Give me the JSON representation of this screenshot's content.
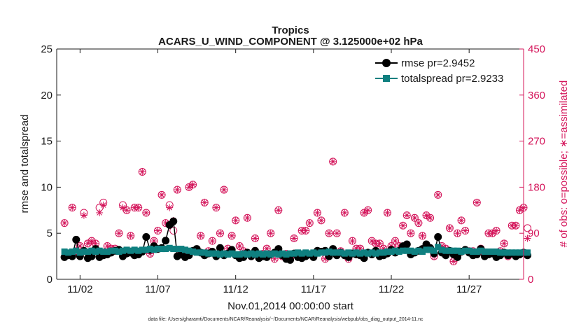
{
  "chart_data": {
    "type": "line",
    "title": "Tropics",
    "subtitle": "ACARS_U_WIND_COMPONENT @ 3.125000e+02 hPa",
    "xlabel": "Nov.01,2014 00:00:00 start",
    "ylabel": "rmse and totalspread",
    "y2label": "# of obs: o=possible; ∗=assimilated",
    "footnote": "data file: /Users/gharamti/Documents/NCAR/Reanalysis/~/Documents/NCAR/Reanalysis/webpub/obs_diag_output_2014-11.nc",
    "xlim": [
      0.5,
      30.5
    ],
    "ylim": [
      0,
      25
    ],
    "y2lim": [
      0,
      450
    ],
    "x_ticks": [
      {
        "value": 2,
        "label": "11/02"
      },
      {
        "value": 7,
        "label": "11/07"
      },
      {
        "value": 12,
        "label": "11/12"
      },
      {
        "value": 17,
        "label": "11/17"
      },
      {
        "value": 22,
        "label": "11/22"
      },
      {
        "value": 27,
        "label": "11/27"
      }
    ],
    "y_ticks": [
      0,
      5,
      10,
      15,
      20,
      25
    ],
    "y2_ticks": [
      0,
      90,
      180,
      270,
      360,
      450
    ],
    "legend": [
      "rmse pr=2.9452",
      "totalspread pr=2.9233"
    ],
    "colors": {
      "rmse": "#000000",
      "totalspread": "#0f8080",
      "obs": "#d4145a",
      "axis": "#1a1a1a"
    },
    "series": [
      {
        "name": "rmse",
        "values": [
          2.4,
          2.6,
          2.5,
          4.3,
          2.5,
          3.1,
          2.3,
          2.5,
          3.3,
          2.4,
          2.6,
          2.7,
          2.9,
          3.1,
          3.2,
          2.5,
          2.8,
          2.9,
          2.6,
          2.7,
          3.0,
          4.6,
          3.2,
          3.6,
          3.3,
          3.4,
          4.2,
          5.9,
          6.3,
          2.5,
          2.7,
          2.4,
          2.6,
          3.1,
          3.3,
          2.9,
          2.6,
          2.8,
          3.0,
          2.5,
          3.4,
          2.6,
          2.8,
          3.2,
          2.6,
          2.3,
          2.4,
          2.9,
          2.5,
          3.1,
          2.3,
          2.5,
          2.4,
          2.7,
          2.9,
          3.3,
          2.6,
          2.2,
          2.1,
          2.8,
          2.4,
          2.3,
          2.5,
          2.7,
          2.4,
          3.1,
          3.0,
          3.1,
          2.5,
          3.3,
          2.6,
          2.9,
          2.6,
          2.4,
          2.8,
          2.7,
          2.6,
          2.3,
          2.9,
          2.7,
          3.1,
          2.5,
          2.6,
          2.8,
          3.2,
          2.9,
          3.1,
          3.6,
          3.8,
          2.7,
          2.9,
          3.1,
          3.3,
          3.8,
          3.4,
          2.8,
          4.6,
          2.9,
          2.6,
          3.1,
          2.7,
          2.4,
          3.0,
          3.2,
          2.9,
          2.6,
          2.7,
          3.3,
          2.5,
          2.7,
          2.8,
          2.4,
          2.6,
          2.9,
          2.6,
          2.8,
          2.5,
          2.7,
          2.9,
          2.6
        ]
      },
      {
        "name": "totalspread",
        "values": [
          3.0,
          2.9,
          3.0,
          3.1,
          2.9,
          3.0,
          3.0,
          3.1,
          3.0,
          3.1,
          3.0,
          3.0,
          3.1,
          3.1,
          3.0,
          3.1,
          3.2,
          3.1,
          3.2,
          3.1,
          3.2,
          3.2,
          3.3,
          3.2,
          3.3,
          3.3,
          3.3,
          3.4,
          3.3,
          3.3,
          3.3,
          3.2,
          3.1,
          3.0,
          2.9,
          2.9,
          2.9,
          2.8,
          2.8,
          2.8,
          2.7,
          2.8,
          2.7,
          2.8,
          2.7,
          2.7,
          2.8,
          2.7,
          2.8,
          2.7,
          2.8,
          2.7,
          2.8,
          2.7,
          2.8,
          2.7,
          2.8,
          2.7,
          2.8,
          2.8,
          2.9,
          2.8,
          2.9,
          2.8,
          2.9,
          2.8,
          2.9,
          2.9,
          3.0,
          2.9,
          2.9,
          2.9,
          2.8,
          2.9,
          2.8,
          2.9,
          2.8,
          2.9,
          2.8,
          2.9,
          2.8,
          2.9,
          2.9,
          3.0,
          3.0,
          3.1,
          3.0,
          3.1,
          3.1,
          3.1,
          3.0,
          3.1,
          3.0,
          3.2,
          3.2,
          3.1,
          3.5,
          3.2,
          3.1,
          3.1,
          3.1,
          3.1,
          3.0,
          3.1,
          3.1,
          3.0,
          3.0,
          3.1,
          3.0,
          3.0,
          3.0,
          3.0,
          2.9,
          2.9,
          2.9,
          2.9,
          2.9,
          2.9,
          2.9,
          2.9
        ]
      },
      {
        "name": "obs_possible",
        "values": [
          110,
          50,
          140,
          55,
          65,
          130,
          70,
          75,
          70,
          140,
          150,
          65,
          60,
          60,
          90,
          145,
          135,
          85,
          140,
          140,
          210,
          130,
          50,
          75,
          95,
          165,
          110,
          145,
          95,
          175,
          50,
          55,
          180,
          185,
          55,
          85,
          150,
          55,
          75,
          140,
          90,
          175,
          60,
          85,
          115,
          65,
          55,
          120,
          45,
          80,
          45,
          50,
          60,
          90,
          40,
          135,
          45,
          50,
          40,
          80,
          50,
          95,
          95,
          110,
          45,
          130,
          115,
          40,
          90,
          230,
          90,
          55,
          130,
          40,
          75,
          60,
          60,
          130,
          135,
          75,
          70,
          70,
          60,
          130,
          65,
          75,
          65,
          105,
          125,
          90,
          120,
          110,
          85,
          125,
          120,
          45,
          165,
          65,
          60,
          100,
          35,
          90,
          115,
          95,
          55,
          55,
          150,
          60,
          50,
          90,
          90,
          95,
          55,
          70,
          45,
          105,
          105,
          135,
          140,
          100
        ]
      },
      {
        "name": "obs_assimilated",
        "values": [
          110,
          50,
          140,
          55,
          65,
          125,
          70,
          75,
          70,
          130,
          145,
          65,
          60,
          60,
          90,
          140,
          135,
          85,
          140,
          140,
          210,
          130,
          50,
          75,
          95,
          165,
          110,
          140,
          115,
          175,
          50,
          55,
          180,
          185,
          55,
          85,
          150,
          55,
          75,
          140,
          90,
          175,
          60,
          85,
          115,
          65,
          55,
          120,
          45,
          80,
          45,
          50,
          60,
          90,
          40,
          135,
          45,
          50,
          40,
          80,
          50,
          95,
          95,
          110,
          45,
          130,
          115,
          40,
          90,
          230,
          90,
          55,
          130,
          40,
          75,
          60,
          60,
          130,
          135,
          75,
          70,
          70,
          60,
          130,
          65,
          75,
          65,
          105,
          125,
          90,
          120,
          110,
          85,
          125,
          120,
          45,
          165,
          65,
          60,
          100,
          35,
          90,
          115,
          95,
          55,
          55,
          150,
          60,
          50,
          90,
          90,
          95,
          55,
          70,
          45,
          105,
          105,
          135,
          140,
          80
        ]
      }
    ],
    "x_start": 1.0,
    "x_step": 0.25
  }
}
